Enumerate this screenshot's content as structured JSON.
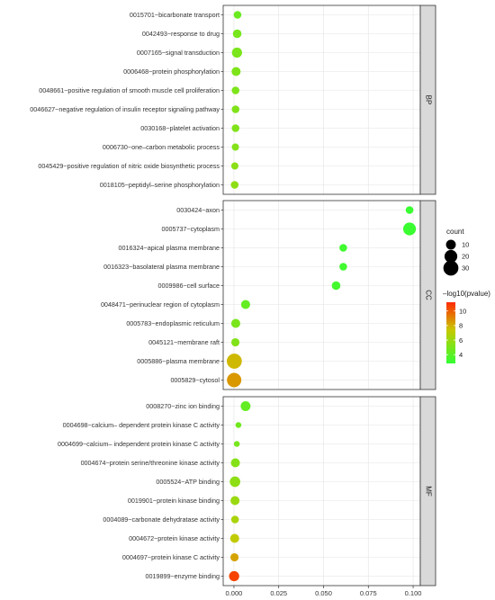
{
  "chart_data": {
    "type": "scatter",
    "title": "",
    "xlabel": "",
    "ylabel": "",
    "xlim": [
      -0.006,
      0.104
    ],
    "x_ticks": [
      "0.000",
      "0.025",
      "0.050",
      "0.075",
      "0.100"
    ],
    "x_tick_values": [
      0.0,
      0.025,
      0.05,
      0.075,
      0.1
    ],
    "grid": true,
    "size_legend": {
      "title": "count",
      "entries": [
        10,
        20,
        30
      ]
    },
    "color_legend": {
      "title": "–log10(pvalue)",
      "ticks": [
        4,
        6,
        8,
        10
      ],
      "range": [
        2.8,
        11.2
      ],
      "low_color": "#33ff33",
      "high_color": "#ff2a00"
    },
    "panels": [
      {
        "name": "BP",
        "terms": [
          {
            "label": "0015701~bicarbonate transport",
            "x": 0.002,
            "count": 5,
            "logp": 4.5
          },
          {
            "label": "0042493~response to drug",
            "x": 0.0018,
            "count": 7,
            "logp": 4.9
          },
          {
            "label": "0007165~signal transduction",
            "x": 0.0017,
            "count": 11,
            "logp": 5.0
          },
          {
            "label": "0006468~protein phosphorylation",
            "x": 0.0012,
            "count": 8,
            "logp": 5.1
          },
          {
            "label": "0048661~positive regulation of smooth muscle cell proliferation",
            "x": 0.0009,
            "count": 5,
            "logp": 5.1
          },
          {
            "label": "0046627~negative regulation of insulin receptor signaling pathway",
            "x": 0.0009,
            "count": 5,
            "logp": 5.2
          },
          {
            "label": "0030168~platelet activation",
            "x": 0.0009,
            "count": 5,
            "logp": 5.2
          },
          {
            "label": "0006730~one–carbon metabolic process",
            "x": 0.0008,
            "count": 4,
            "logp": 5.3
          },
          {
            "label": "0045429~positive regulation of nitric oxide biosynthetic process",
            "x": 0.0005,
            "count": 4,
            "logp": 5.5
          },
          {
            "label": "0018105~peptidyl–serine phosphorylation",
            "x": 0.0004,
            "count": 5,
            "logp": 5.6
          }
        ]
      },
      {
        "name": "CC",
        "terms": [
          {
            "label": "0030424~axon",
            "x": 0.098,
            "count": 5,
            "logp": 3.0
          },
          {
            "label": "0005737~cytoplasm",
            "x": 0.098,
            "count": 20,
            "logp": 3.0
          },
          {
            "label": "0016324~apical plasma membrane",
            "x": 0.061,
            "count": 5,
            "logp": 3.2
          },
          {
            "label": "0016323~basolateral plasma membrane",
            "x": 0.061,
            "count": 5,
            "logp": 3.2
          },
          {
            "label": "0009986~cell surface",
            "x": 0.057,
            "count": 7,
            "logp": 3.3
          },
          {
            "label": "0048471~perinuclear region of cytoplasm",
            "x": 0.0065,
            "count": 8,
            "logp": 4.3
          },
          {
            "label": "0005783~endoplasmic reticulum",
            "x": 0.001,
            "count": 8,
            "logp": 5.0
          },
          {
            "label": "0045121~membrane raft",
            "x": 0.0008,
            "count": 6,
            "logp": 5.2
          },
          {
            "label": "0005886~plasma membrane",
            "x": 0.0002,
            "count": 30,
            "logp": 7.8
          },
          {
            "label": "0005829~cytosol",
            "x": 0.0001,
            "count": 27,
            "logp": 8.6
          }
        ]
      },
      {
        "name": "MF",
        "terms": [
          {
            "label": "0008270~zinc ion binding",
            "x": 0.0065,
            "count": 10,
            "logp": 4.3
          },
          {
            "label": "0004698~calcium– dependent protein kinase C activity",
            "x": 0.0025,
            "count": 2,
            "logp": 4.7
          },
          {
            "label": "0004699~calcium– independent protein kinase C activity",
            "x": 0.0016,
            "count": 2,
            "logp": 4.9
          },
          {
            "label": "0004674~protein serine/threonine kinase activity",
            "x": 0.0008,
            "count": 8,
            "logp": 5.3
          },
          {
            "label": "0005524~ATP binding",
            "x": 0.0006,
            "count": 12,
            "logp": 5.6
          },
          {
            "label": "0019901~protein kinase binding",
            "x": 0.0006,
            "count": 8,
            "logp": 6.0
          },
          {
            "label": "0004089~carbonate dehydratase activity",
            "x": 0.0006,
            "count": 5,
            "logp": 6.5
          },
          {
            "label": "0004672~protein kinase activity",
            "x": 0.0004,
            "count": 8,
            "logp": 7.2
          },
          {
            "label": "0004697~protein kinase C activity",
            "x": 0.0003,
            "count": 6,
            "logp": 8.3
          },
          {
            "label": "0019899~enzyme binding",
            "x": 0.0001,
            "count": 11,
            "logp": 10.6
          }
        ]
      }
    ]
  }
}
